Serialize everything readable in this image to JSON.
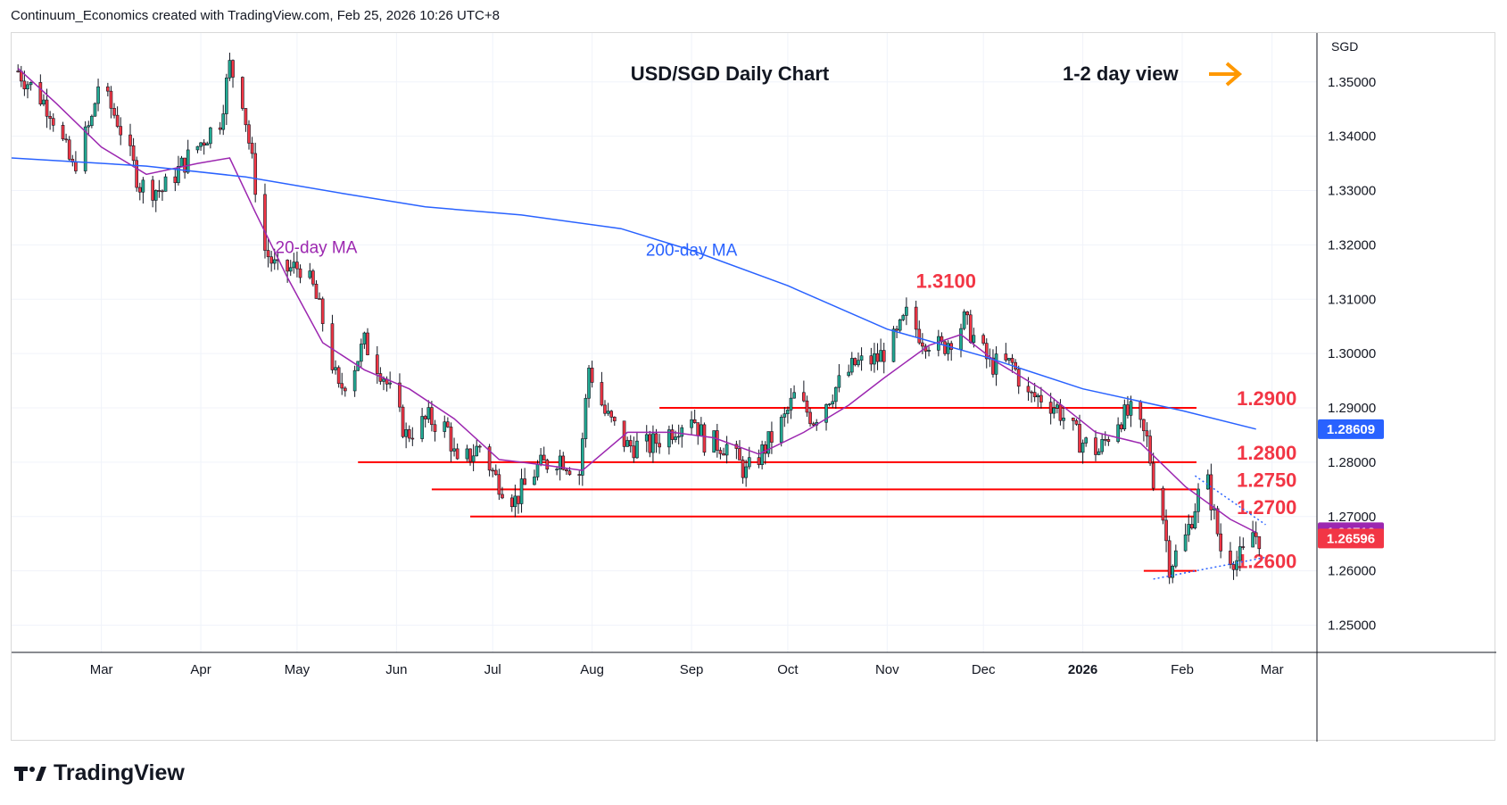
{
  "header": {
    "attribution": "Continuum_Economics created with TradingView.com, Feb 25, 2026 10:26 UTC+8"
  },
  "footer": {
    "brand": "TradingView"
  },
  "chart_data": {
    "type": "candlestick",
    "title": "USD/SGD Daily Chart",
    "view_label": "1-2 day view",
    "view_arrow": "right",
    "currency": "SGD",
    "ylim": [
      1.245,
      1.359
    ],
    "y_ticks": [
      "1.25000",
      "1.26000",
      "1.27000",
      "1.28000",
      "1.29000",
      "1.30000",
      "1.31000",
      "1.32000",
      "1.33000",
      "1.34000",
      "1.35000"
    ],
    "x_ticks": [
      "Mar",
      "Apr",
      "May",
      "Jun",
      "Jul",
      "Aug",
      "Sep",
      "Oct",
      "Nov",
      "Dec",
      "2026",
      "Feb",
      "Mar"
    ],
    "x_tick_dates": [
      "2025-03-01",
      "2025-04-01",
      "2025-05-01",
      "2025-06-01",
      "2025-07-01",
      "2025-08-01",
      "2025-09-01",
      "2025-10-01",
      "2025-11-01",
      "2025-12-01",
      "2026-01-01",
      "2026-02-01",
      "2026-03-01"
    ],
    "date_range": [
      "2025-02-01",
      "2026-03-15"
    ],
    "grid": true,
    "colors": {
      "up": "#22ab94",
      "down": "#f23645",
      "ma20": "#9c27b0",
      "ma200": "#2962ff",
      "level": "#ff0000",
      "arrow": "#ff9800",
      "trend": "#2962ff"
    },
    "price_labels": [
      {
        "text": "1.28609",
        "value": 1.28609,
        "color": "#2962ff"
      },
      {
        "text": "1.26712",
        "value": 1.26712,
        "color": "#9c27b0"
      },
      {
        "text": "1.26596",
        "value": 1.26596,
        "color": "#f23645"
      }
    ],
    "levels": [
      {
        "text": "1.3100",
        "value": 1.31,
        "start": null,
        "label_date": "2025-11-10"
      },
      {
        "text": "1.2900",
        "value": 1.29,
        "start": "2025-08-22",
        "label_date": "2026-02-18"
      },
      {
        "text": "1.2800",
        "value": 1.28,
        "start": "2025-05-20",
        "label_date": "2026-02-18"
      },
      {
        "text": "1.2750",
        "value": 1.275,
        "start": "2025-06-12",
        "label_date": "2026-02-18"
      },
      {
        "text": "1.2700",
        "value": 1.27,
        "start": "2025-06-24",
        "label_date": "2026-02-18"
      },
      {
        "text": "1.2600",
        "value": 1.26,
        "start": "2026-01-20",
        "label_date": "2026-02-18"
      }
    ],
    "series": [
      {
        "name": "20-day MA",
        "points": [
          [
            "2025-02-03",
            1.3525
          ],
          [
            "2025-02-15",
            1.346
          ],
          [
            "2025-03-01",
            1.338
          ],
          [
            "2025-03-15",
            1.333
          ],
          [
            "2025-03-31",
            1.335
          ],
          [
            "2025-04-10",
            1.336
          ],
          [
            "2025-04-18",
            1.326
          ],
          [
            "2025-04-28",
            1.314
          ],
          [
            "2025-05-09",
            1.302
          ],
          [
            "2025-05-22",
            1.297
          ],
          [
            "2025-06-05",
            1.2935
          ],
          [
            "2025-06-19",
            1.288
          ],
          [
            "2025-07-03",
            1.2805
          ],
          [
            "2025-07-17",
            1.2795
          ],
          [
            "2025-07-29",
            1.2785
          ],
          [
            "2025-08-12",
            1.2855
          ],
          [
            "2025-08-26",
            1.2855
          ],
          [
            "2025-09-08",
            1.2845
          ],
          [
            "2025-09-22",
            1.2815
          ],
          [
            "2025-10-06",
            1.2855
          ],
          [
            "2025-10-20",
            1.2905
          ],
          [
            "2025-10-31",
            1.2955
          ],
          [
            "2025-11-14",
            1.3015
          ],
          [
            "2025-11-24",
            1.3035
          ],
          [
            "2025-12-05",
            1.2985
          ],
          [
            "2025-12-19",
            1.2935
          ],
          [
            "2026-01-05",
            1.2855
          ],
          [
            "2026-01-19",
            1.2835
          ],
          [
            "2026-02-02",
            1.2755
          ],
          [
            "2026-02-16",
            1.2695
          ],
          [
            "2026-02-24",
            1.2671
          ]
        ]
      },
      {
        "name": "200-day MA",
        "points": [
          [
            "2025-02-01",
            1.336
          ],
          [
            "2025-03-15",
            1.3345
          ],
          [
            "2025-04-15",
            1.3325
          ],
          [
            "2025-05-15",
            1.3295
          ],
          [
            "2025-06-10",
            1.327
          ],
          [
            "2025-07-10",
            1.3255
          ],
          [
            "2025-08-10",
            1.323
          ],
          [
            "2025-09-01",
            1.319
          ],
          [
            "2025-10-01",
            1.3125
          ],
          [
            "2025-11-01",
            1.3045
          ],
          [
            "2025-12-01",
            1.2995
          ],
          [
            "2026-01-01",
            1.2935
          ],
          [
            "2026-02-01",
            1.2895
          ],
          [
            "2026-02-24",
            1.2861
          ]
        ]
      }
    ],
    "series_labels": [
      {
        "text": "20-day MA",
        "series": "20-day MA",
        "date": "2025-05-07",
        "value": 1.3185
      },
      {
        "text": "200-day MA",
        "series": "200-day MA",
        "date": "2025-09-01",
        "value": 1.318
      }
    ],
    "trendlines": [
      {
        "points": [
          [
            "2026-02-05",
            1.2775
          ],
          [
            "2026-02-27",
            1.2685
          ]
        ]
      },
      {
        "points": [
          [
            "2026-01-23",
            1.2585
          ],
          [
            "2026-02-27",
            1.2625
          ]
        ]
      }
    ],
    "candle_anchors": [
      [
        "2025-02-03",
        1.352
      ],
      [
        "2025-02-13",
        1.345
      ],
      [
        "2025-02-20",
        1.334
      ],
      [
        "2025-02-26",
        1.343
      ],
      [
        "2025-02-28",
        1.3495
      ],
      [
        "2025-03-06",
        1.343
      ],
      [
        "2025-03-13",
        1.331
      ],
      [
        "2025-03-20",
        1.33
      ],
      [
        "2025-03-28",
        1.336
      ],
      [
        "2025-04-04",
        1.341
      ],
      [
        "2025-04-07",
        1.343
      ],
      [
        "2025-04-10",
        1.353
      ],
      [
        "2025-04-14",
        1.347
      ],
      [
        "2025-04-17",
        1.335
      ],
      [
        "2025-04-21",
        1.319
      ],
      [
        "2025-04-25",
        1.315
      ],
      [
        "2025-05-02",
        1.316
      ],
      [
        "2025-05-06",
        1.312
      ],
      [
        "2025-05-09",
        1.306
      ],
      [
        "2025-05-14",
        1.293
      ],
      [
        "2025-05-19",
        1.298
      ],
      [
        "2025-05-22",
        1.302
      ],
      [
        "2025-05-28",
        1.296
      ],
      [
        "2025-06-04",
        1.285
      ],
      [
        "2025-06-11",
        1.288
      ],
      [
        "2025-06-17",
        1.286
      ],
      [
        "2025-06-20",
        1.279
      ],
      [
        "2025-06-27",
        1.283
      ],
      [
        "2025-07-02",
        1.277
      ],
      [
        "2025-07-08",
        1.273
      ],
      [
        "2025-07-15",
        1.279
      ],
      [
        "2025-07-22",
        1.281
      ],
      [
        "2025-07-28",
        1.278
      ],
      [
        "2025-07-31",
        1.2975
      ],
      [
        "2025-08-05",
        1.289
      ],
      [
        "2025-08-12",
        1.283
      ],
      [
        "2025-08-19",
        1.283
      ],
      [
        "2025-08-26",
        1.286
      ],
      [
        "2025-09-01",
        1.289
      ],
      [
        "2025-09-05",
        1.284
      ],
      [
        "2025-09-12",
        1.283
      ],
      [
        "2025-09-18",
        1.278
      ],
      [
        "2025-09-22",
        1.281
      ],
      [
        "2025-09-30",
        1.288
      ],
      [
        "2025-10-03",
        1.292
      ],
      [
        "2025-10-09",
        1.288
      ],
      [
        "2025-10-15",
        1.293
      ],
      [
        "2025-10-22",
        1.298
      ],
      [
        "2025-10-29",
        1.299
      ],
      [
        "2025-11-04",
        1.303
      ],
      [
        "2025-11-07",
        1.307
      ],
      [
        "2025-11-12",
        1.303
      ],
      [
        "2025-11-18",
        1.301
      ],
      [
        "2025-11-21",
        1.303
      ],
      [
        "2025-11-25",
        1.306
      ],
      [
        "2025-11-28",
        1.303
      ],
      [
        "2025-12-03",
        1.298
      ],
      [
        "2025-12-10",
        1.298
      ],
      [
        "2025-12-15",
        1.292
      ],
      [
        "2025-12-19",
        1.292
      ],
      [
        "2025-12-24",
        1.29
      ],
      [
        "2025-12-31",
        1.284
      ],
      [
        "2026-01-06",
        1.282
      ],
      [
        "2026-01-12",
        1.288
      ],
      [
        "2026-01-16",
        1.289
      ],
      [
        "2026-01-21",
        1.284
      ],
      [
        "2026-01-23",
        1.277
      ],
      [
        "2026-01-26",
        1.27
      ],
      [
        "2026-01-28",
        1.261
      ],
      [
        "2026-02-02",
        1.266
      ],
      [
        "2026-02-04",
        1.27
      ],
      [
        "2026-02-06",
        1.274
      ],
      [
        "2026-02-09",
        1.276
      ],
      [
        "2026-02-11",
        1.27
      ],
      [
        "2026-02-13",
        1.264
      ],
      [
        "2026-02-18",
        1.262
      ],
      [
        "2026-02-20",
        1.263
      ],
      [
        "2026-02-23",
        1.267
      ],
      [
        "2026-02-25",
        1.266
      ]
    ]
  }
}
